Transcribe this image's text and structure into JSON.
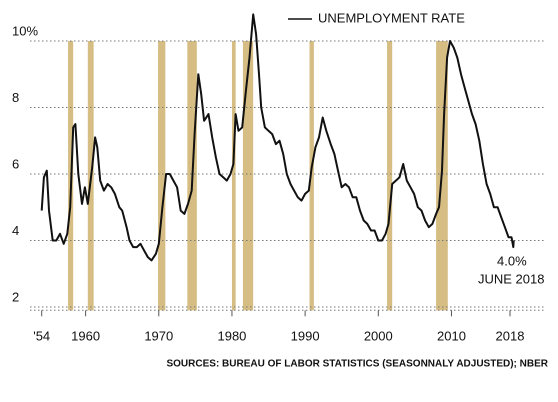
{
  "chart_data": {
    "type": "line",
    "x": [
      1954.0,
      1954.3,
      1954.7,
      1955.0,
      1955.5,
      1956.0,
      1956.5,
      1957.0,
      1957.5,
      1957.9,
      1958.3,
      1958.6,
      1959.0,
      1959.5,
      1959.9,
      1960.3,
      1960.9,
      1961.3,
      1961.6,
      1962.0,
      1962.5,
      1963.0,
      1963.5,
      1964.0,
      1964.6,
      1965.0,
      1965.6,
      1966.0,
      1966.5,
      1967.0,
      1967.5,
      1968.0,
      1968.5,
      1969.0,
      1969.6,
      1970.0,
      1970.5,
      1971.0,
      1971.5,
      1972.0,
      1972.5,
      1973.0,
      1973.5,
      1974.0,
      1974.5,
      1974.9,
      1975.4,
      1975.8,
      1976.2,
      1976.8,
      1977.3,
      1977.8,
      1978.3,
      1978.8,
      1979.3,
      1979.8,
      1980.2,
      1980.5,
      1980.9,
      1981.4,
      1981.9,
      1982.4,
      1982.9,
      1983.3,
      1983.7,
      1984.0,
      1984.5,
      1985.0,
      1985.5,
      1986.0,
      1986.5,
      1987.0,
      1987.5,
      1988.0,
      1988.5,
      1989.0,
      1989.5,
      1990.0,
      1990.5,
      1990.9,
      1991.4,
      1991.9,
      1992.4,
      1992.9,
      1993.5,
      1994.0,
      1994.5,
      1995.0,
      1995.5,
      1996.0,
      1996.5,
      1997.0,
      1997.5,
      1998.0,
      1998.5,
      1999.0,
      1999.5,
      2000.0,
      2000.5,
      2001.0,
      2001.4,
      2001.9,
      2002.4,
      2002.9,
      2003.4,
      2003.9,
      2004.4,
      2004.9,
      2005.4,
      2005.9,
      2006.4,
      2006.9,
      2007.4,
      2007.9,
      2008.3,
      2008.7,
      2009.0,
      2009.4,
      2009.8,
      2010.3,
      2010.8,
      2011.3,
      2011.8,
      2012.3,
      2012.8,
      2013.3,
      2013.8,
      2014.3,
      2014.8,
      2015.3,
      2015.8,
      2016.3,
      2016.8,
      2017.3,
      2017.8,
      2018.2,
      2018.45,
      2018.5
    ],
    "series": [
      {
        "name": "UNEMPLOYMENT RATE",
        "color": "#111111",
        "values": [
          4.9,
          5.9,
          6.1,
          4.9,
          4.0,
          4.0,
          4.2,
          3.9,
          4.2,
          5.0,
          7.4,
          7.5,
          6.0,
          5.1,
          5.6,
          5.1,
          6.2,
          7.1,
          6.8,
          5.8,
          5.5,
          5.7,
          5.6,
          5.4,
          5.0,
          4.9,
          4.4,
          4.0,
          3.8,
          3.8,
          3.9,
          3.7,
          3.5,
          3.4,
          3.6,
          3.9,
          5.0,
          6.0,
          6.0,
          5.8,
          5.6,
          4.9,
          4.8,
          5.1,
          5.5,
          7.2,
          9.0,
          8.4,
          7.6,
          7.8,
          7.1,
          6.5,
          6.0,
          5.9,
          5.8,
          6.0,
          6.3,
          7.8,
          7.3,
          7.4,
          8.5,
          9.5,
          10.8,
          10.2,
          9.0,
          8.0,
          7.4,
          7.3,
          7.2,
          6.9,
          7.0,
          6.6,
          6.0,
          5.7,
          5.5,
          5.3,
          5.2,
          5.4,
          5.5,
          6.2,
          6.8,
          7.1,
          7.7,
          7.3,
          6.9,
          6.6,
          6.1,
          5.6,
          5.7,
          5.6,
          5.3,
          5.3,
          4.9,
          4.6,
          4.5,
          4.3,
          4.3,
          4.0,
          4.0,
          4.2,
          4.5,
          5.7,
          5.8,
          5.9,
          6.3,
          5.8,
          5.6,
          5.4,
          5.0,
          4.9,
          4.6,
          4.4,
          4.5,
          4.8,
          5.0,
          6.1,
          7.8,
          9.5,
          10.0,
          9.8,
          9.5,
          9.0,
          8.6,
          8.2,
          7.8,
          7.5,
          7.0,
          6.3,
          5.7,
          5.4,
          5.0,
          5.0,
          4.7,
          4.4,
          4.1,
          4.1,
          3.8,
          4.0
        ]
      }
    ],
    "recessions": [
      [
        1957.6,
        1958.3
      ],
      [
        1960.3,
        1961.1
      ],
      [
        1969.9,
        1970.9
      ],
      [
        1973.9,
        1975.2
      ],
      [
        1980.0,
        1980.5
      ],
      [
        1981.5,
        1982.9
      ],
      [
        1990.6,
        1991.2
      ],
      [
        2001.2,
        2001.9
      ],
      [
        2007.9,
        2009.5
      ]
    ],
    "recession_color": "#d6bd84",
    "xlim": [
      1952.4,
      2022.1
    ],
    "xticks": [
      {
        "value": 1954,
        "label": "'54"
      },
      1960,
      1970,
      1980,
      1990,
      2000,
      2010,
      2018
    ],
    "ylim": [
      1.9,
      11.2
    ],
    "yticks": [
      2,
      4,
      6,
      8,
      {
        "value": 10,
        "label": "10%"
      }
    ],
    "grid": true,
    "annotations": [
      "4.0%",
      "JUNE 2018"
    ],
    "source": "SOURCES: BUREAU OF LABOR STATISTICS (SEASONNALY ADJUSTED); NBER"
  }
}
